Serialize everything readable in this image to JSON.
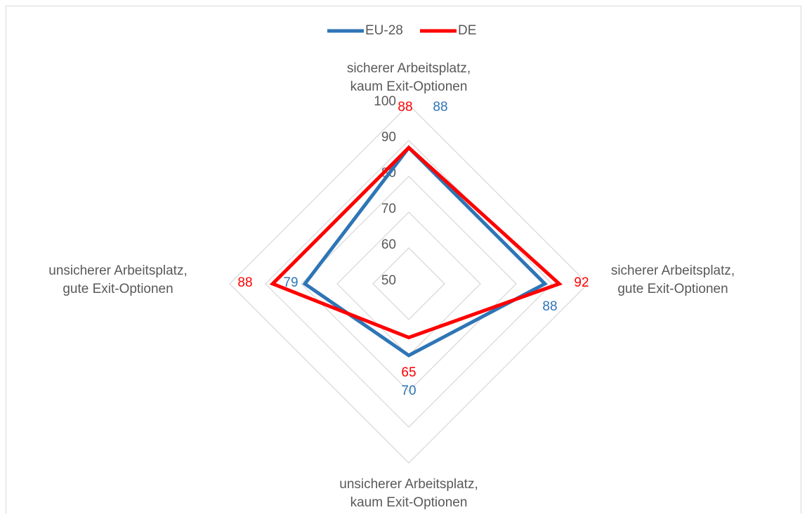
{
  "chart_data": {
    "type": "radar",
    "categories": [
      [
        "sicherer Arbeitsplatz,",
        "kaum Exit-Optionen"
      ],
      [
        "sicherer Arbeitsplatz,",
        "gute Exit-Optionen"
      ],
      [
        "unsicherer Arbeitsplatz,",
        "kaum Exit-Optionen"
      ],
      [
        "unsicherer Arbeitsplatz,",
        "gute Exit-Optionen"
      ]
    ],
    "series": [
      {
        "name": "EU-28",
        "color": "#2e75b6",
        "values": [
          88,
          88,
          70,
          79
        ]
      },
      {
        "name": "DE",
        "color": "#ff0000",
        "values": [
          88,
          92,
          65,
          88
        ]
      }
    ],
    "rlim": [
      50,
      100
    ],
    "rticks": [
      50,
      60,
      70,
      80,
      90,
      100
    ],
    "grid": true,
    "legend": "top"
  }
}
